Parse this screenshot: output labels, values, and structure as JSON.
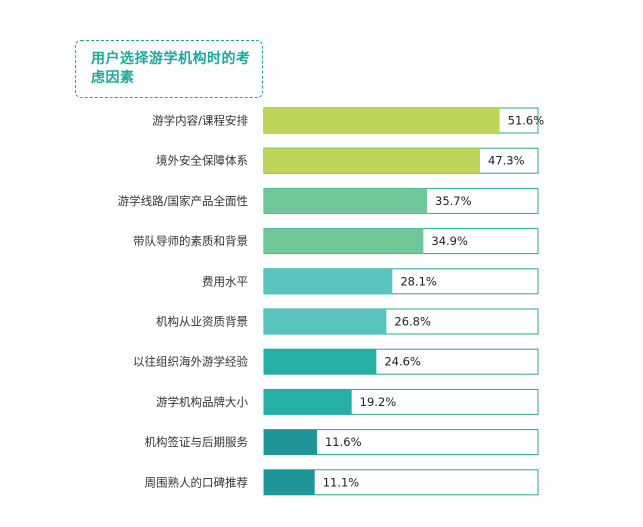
{
  "chart_data": {
    "type": "bar",
    "orientation": "horizontal",
    "title": "用户选择游学机构时的考虑因素",
    "categories": [
      "游学内容/课程安排",
      "境外安全保障体系",
      "游学线路/国家产品全面性",
      "带队导师的素质和背景",
      "费用水平",
      "机构从业资质背景",
      "以往组织海外游学经验",
      "游学机构品牌大小",
      "机构签证与后期服务",
      "周围熟人的口碑推荐"
    ],
    "values": [
      51.6,
      47.3,
      35.7,
      34.9,
      28.1,
      26.8,
      24.6,
      19.2,
      11.6,
      11.1
    ],
    "value_labels": [
      "51.6%",
      "47.3%",
      "35.7%",
      "34.9%",
      "28.1%",
      "26.8%",
      "24.6%",
      "19.2%",
      "11.6%",
      "11.1%"
    ],
    "bar_colors": [
      "#bdd65a",
      "#bdd65a",
      "#6fc798",
      "#6fc798",
      "#58c4bd",
      "#58c4bd",
      "#25b0a6",
      "#25b0a6",
      "#1e9599",
      "#1e9599"
    ],
    "track_border_color": "#2aa59a",
    "xlim": [
      0,
      60
    ],
    "grid": false,
    "legend": "none"
  }
}
